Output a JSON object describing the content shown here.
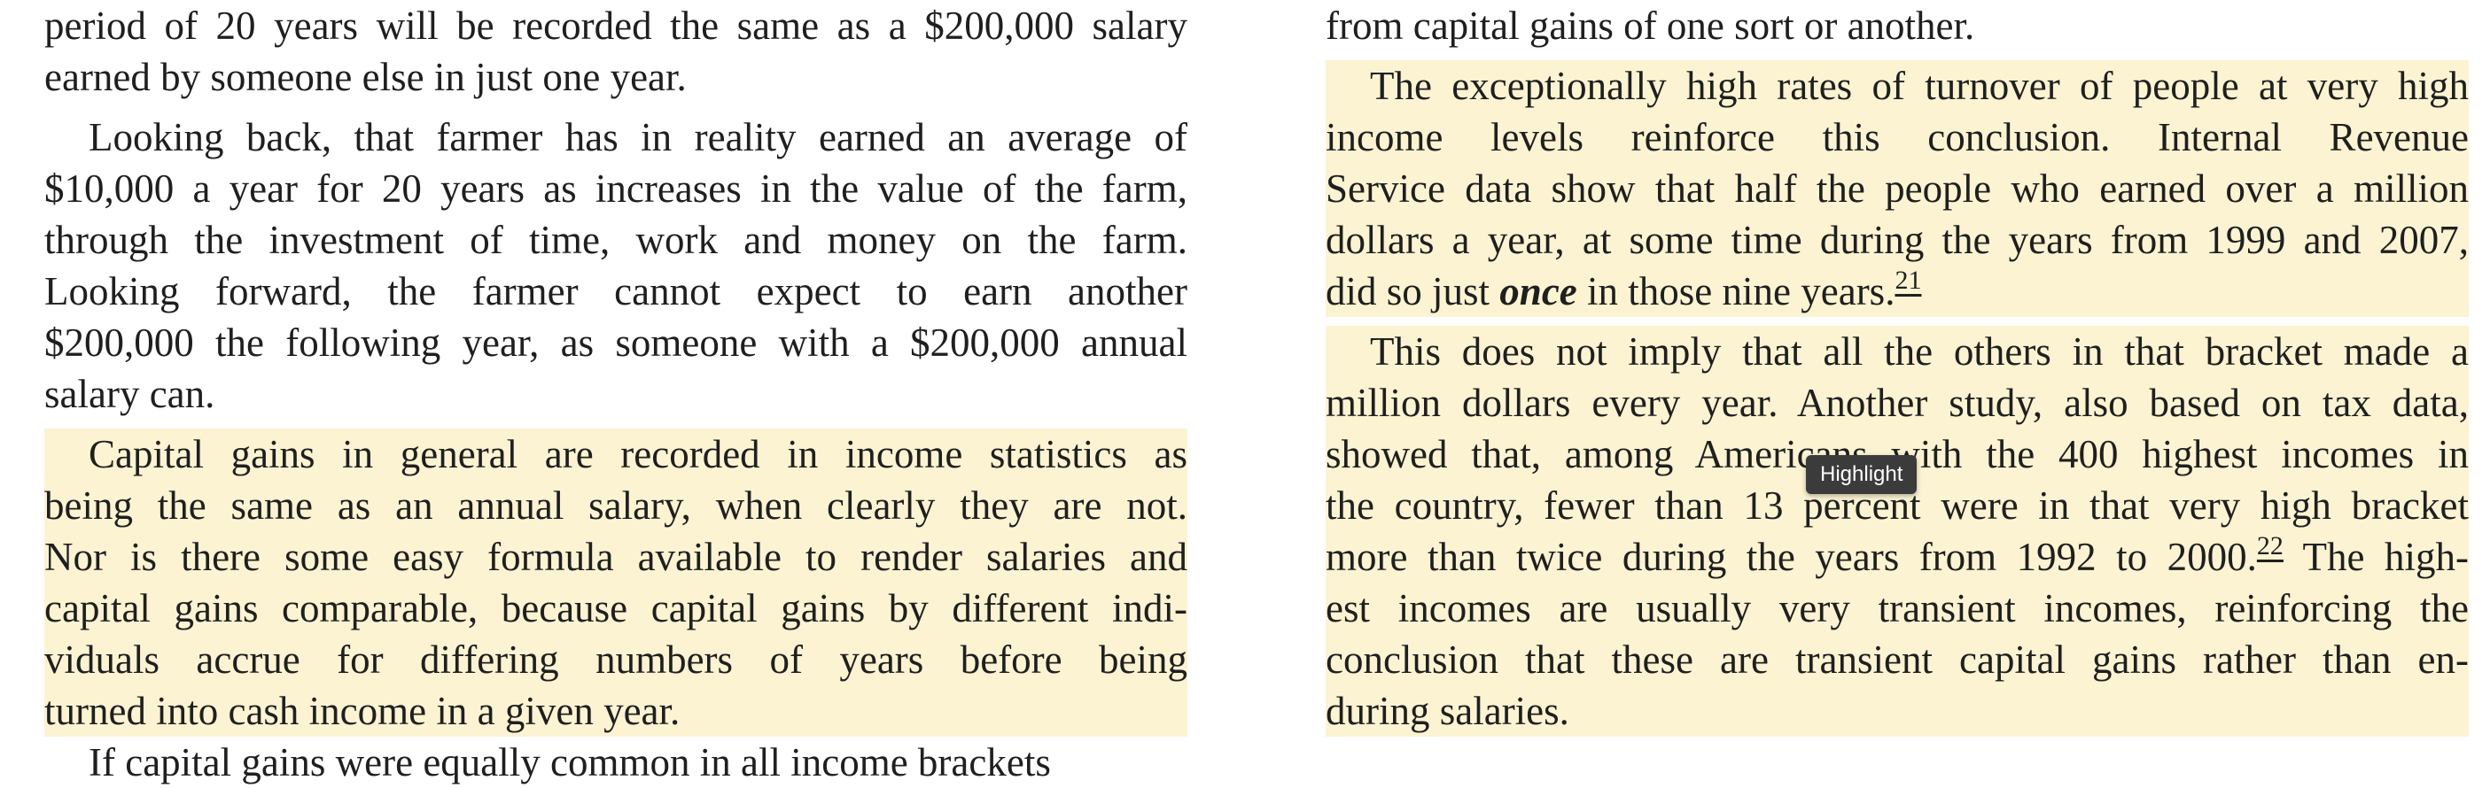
{
  "left_column": {
    "top_clipped": "",
    "p1_lines": [
      "period of 20 years will be recorded the same as a $200,000 salary",
      "earned by someone else in just one year."
    ],
    "p2_lines": [
      "Looking back, that farmer has in reality earned an average of",
      "$10,000 a year for 20 years as increases in the value of the farm,",
      "through the investment of time, work and money on the farm.",
      "Looking forward, the farmer cannot expect to earn another",
      "$200,000 the following year, as someone with a $200,000 annual",
      "salary can."
    ],
    "p3_lines": [
      "Capital gains in general are recorded in income statistics as",
      "being the same as an annual salary, when clearly they are not.",
      "Nor is there some easy formula available to render salaries and",
      "capital gains comparable, because capital gains by different indi-",
      "viduals accrue for differing numbers of years before being",
      "turned into cash income in a given year."
    ],
    "bottom_clipped": "If capital gains were equally common in all income brackets"
  },
  "right_column": {
    "top_line": "from capital gains of one sort or another.",
    "p1_lines": [
      "The exceptionally high rates of turnover of people at very high",
      "income levels reinforce this conclusion. Internal Revenue",
      "Service data show that half the people who earned over a million",
      "dollars a year, at some time during the years from 1999 and 2007,"
    ],
    "p1_last_prefix": "did so just ",
    "p1_last_em": "once",
    "p1_last_suffix": " in those nine years.",
    "footnote_21": "21",
    "p2_lines": [
      "This does not imply that all the others in that bracket made a",
      "million dollars every year. Another study, also based on tax data,",
      "showed that, among Americans with the 400 highest incomes in",
      "the country, fewer than 13 percent were in that very high bracket"
    ],
    "p2_line5_prefix": "more than twice during the years from 1992 to 2000.",
    "footnote_22": "22",
    "p2_line5_suffix": " The high-",
    "p2_rest_lines": [
      "est incomes are usually very transient incomes, reinforcing the",
      "conclusion that these are transient capital gains rather than en-",
      "during salaries."
    ]
  },
  "tooltip": {
    "label": "Highlight"
  },
  "colors": {
    "highlight": "#fbf3d2",
    "tooltip_bg": "#3b3b3b",
    "text": "#1f1f1f"
  }
}
